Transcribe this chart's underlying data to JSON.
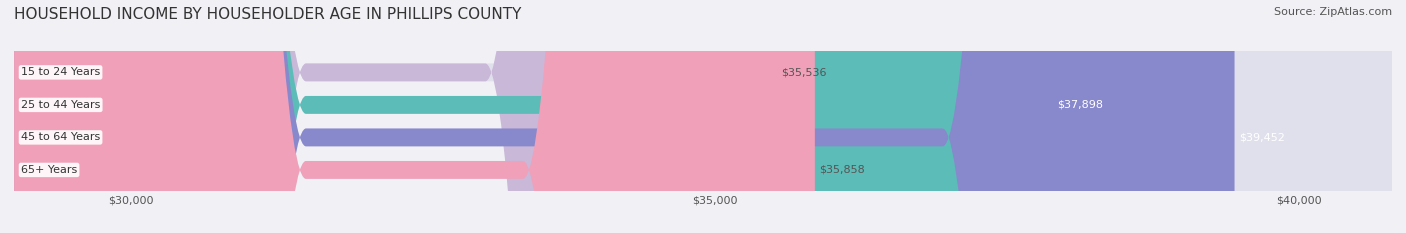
{
  "title": "HOUSEHOLD INCOME BY HOUSEHOLDER AGE IN PHILLIPS COUNTY",
  "source": "Source: ZipAtlas.com",
  "categories": [
    "15 to 24 Years",
    "25 to 44 Years",
    "45 to 64 Years",
    "65+ Years"
  ],
  "values": [
    35536,
    37898,
    39452,
    35858
  ],
  "bar_colors": [
    "#c9b8d8",
    "#5bbcb8",
    "#8888cc",
    "#f0a0b8"
  ],
  "bar_label_colors": [
    "#555555",
    "#ffffff",
    "#ffffff",
    "#555555"
  ],
  "xlim": [
    29000,
    40800
  ],
  "xticks": [
    30000,
    35000,
    40000
  ],
  "xticklabels": [
    "$30,000",
    "$35,000",
    "$40,000"
  ],
  "background_color": "#f0f0f5",
  "bar_bg_color": "#e0e0ec",
  "title_fontsize": 11,
  "source_fontsize": 8,
  "label_fontsize": 8,
  "value_fontsize": 8,
  "tick_fontsize": 8,
  "bar_height": 0.55
}
